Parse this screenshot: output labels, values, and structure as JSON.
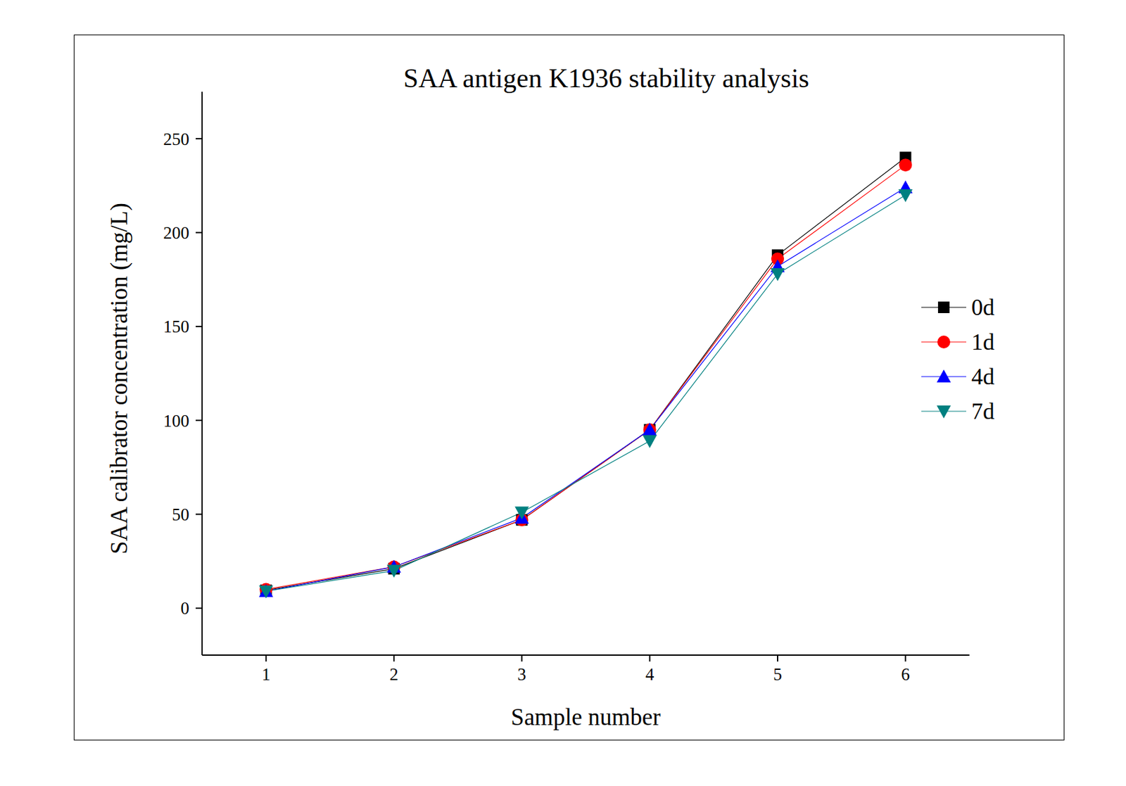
{
  "chart_data": {
    "type": "line",
    "title": "SAA antigen K1936 stability analysis",
    "x_label": "Sample number",
    "y_label": "SAA calibrator concentration (mg/L)",
    "x": [
      1,
      2,
      3,
      4,
      5,
      6
    ],
    "xlim": [
      0.5,
      6.5
    ],
    "xticks": [
      1,
      2,
      3,
      4,
      5,
      6
    ],
    "ylim": [
      -25,
      275
    ],
    "yticks": [
      0,
      50,
      100,
      150,
      200,
      250
    ],
    "grid": false,
    "legend": "right",
    "series": [
      {
        "name": "0d",
        "color": "#000000",
        "marker": "square",
        "values": [
          9.5,
          21,
          47,
          95,
          188,
          240
        ]
      },
      {
        "name": "1d",
        "color": "#ff0000",
        "marker": "circle",
        "values": [
          10,
          22,
          47,
          95,
          186,
          236
        ]
      },
      {
        "name": "4d",
        "color": "#0000ff",
        "marker": "triangle",
        "values": [
          9,
          22,
          48,
          95,
          182,
          224
        ]
      },
      {
        "name": "7d",
        "color": "#008080",
        "marker": "triangle-down",
        "values": [
          9,
          20,
          51,
          89,
          178,
          220
        ]
      }
    ]
  }
}
